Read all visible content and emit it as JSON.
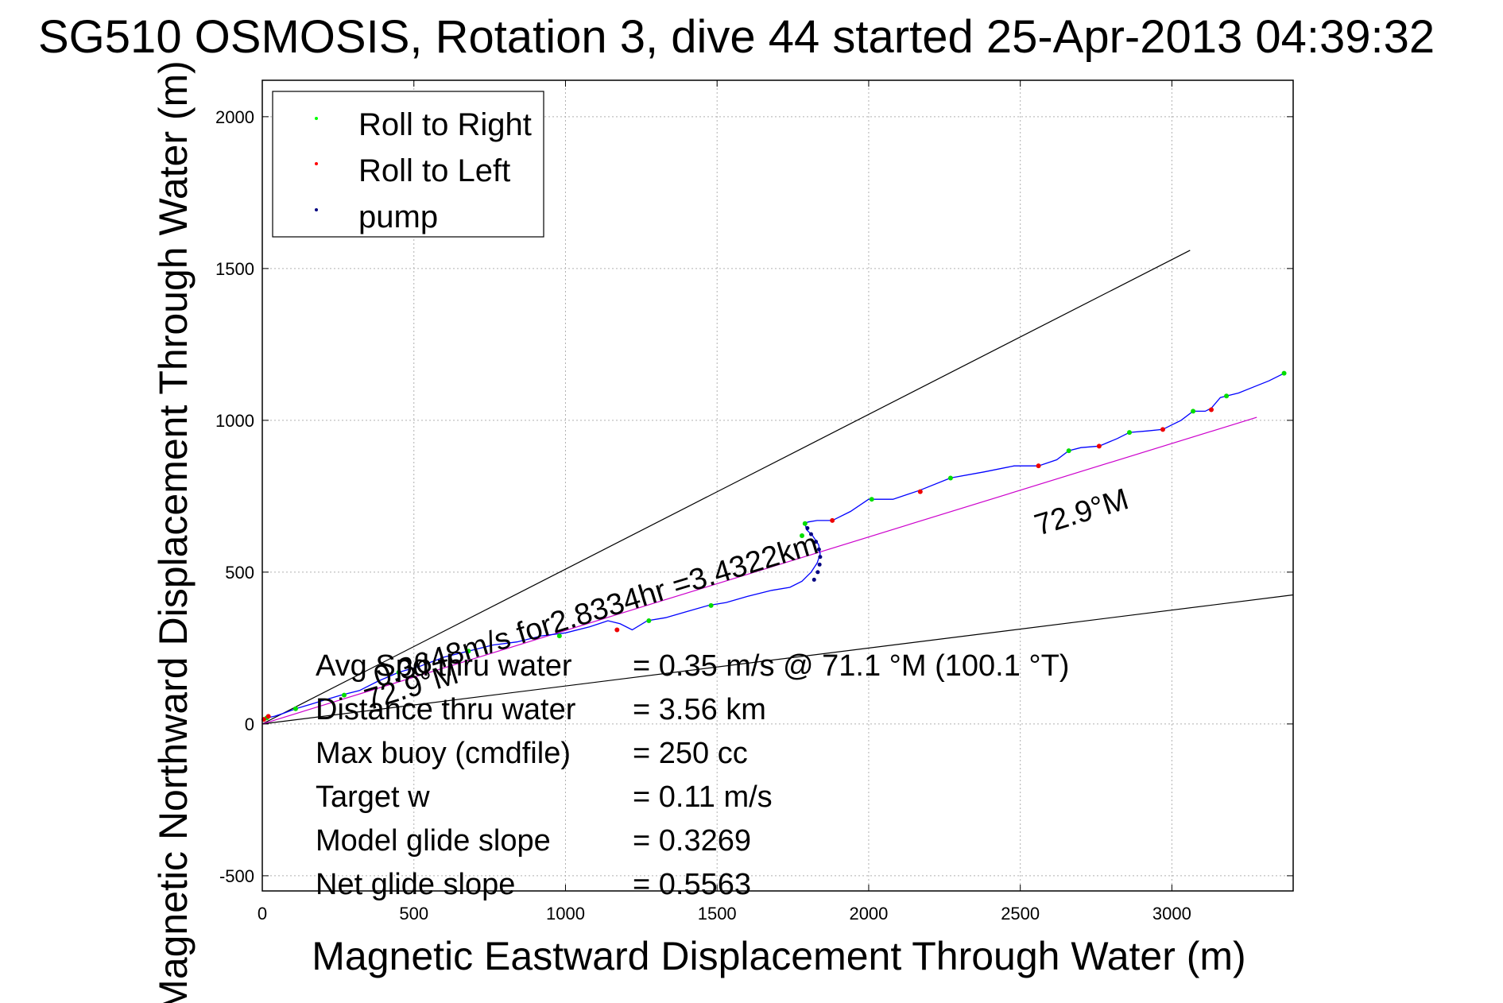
{
  "chart_data": {
    "type": "line",
    "title": "SG510 OSMOSIS, Rotation 3, dive 44 started 25-Apr-2013 04:39:32",
    "xlabel": "Magnetic Eastward Displacement Through Water (m)",
    "ylabel": "Magnetic Northward Displacement Through Water (m)",
    "xlim": [
      0,
      3400
    ],
    "ylim": [
      -550,
      2120
    ],
    "xticks": [
      0,
      500,
      1000,
      1500,
      2000,
      2500,
      3000
    ],
    "yticks": [
      -500,
      0,
      500,
      1000,
      1500,
      2000
    ],
    "grid": true,
    "legend_position": "top-left",
    "legend": [
      {
        "label": "Roll to Right",
        "color": "#00ff00"
      },
      {
        "label": "Roll to Left",
        "color": "#ff0000"
      },
      {
        "label": "pump",
        "color": "#000080"
      }
    ],
    "track": {
      "name": "",
      "color": "#0000ff",
      "x": [
        0,
        15,
        40,
        70,
        110,
        160,
        210,
        260,
        320,
        380,
        450,
        520,
        600,
        680,
        760,
        840,
        920,
        1000,
        1080,
        1140,
        1180,
        1220,
        1270,
        1330,
        1400,
        1470,
        1530,
        1600,
        1680,
        1740,
        1780,
        1810,
        1830,
        1840,
        1835,
        1815,
        1795,
        1790,
        1800,
        1830,
        1880,
        1940,
        2000,
        2080,
        2170,
        2270,
        2380,
        2480,
        2560,
        2620,
        2660,
        2700,
        2760,
        2820,
        2860,
        2920,
        2970,
        3000,
        3030,
        3070,
        3110,
        3130,
        3160,
        3180,
        3220,
        3270,
        3320,
        3370
      ],
      "y": [
        10,
        20,
        25,
        35,
        50,
        65,
        80,
        95,
        110,
        140,
        170,
        190,
        220,
        240,
        260,
        270,
        290,
        300,
        320,
        340,
        330,
        310,
        340,
        350,
        370,
        390,
        400,
        420,
        440,
        450,
        470,
        500,
        530,
        560,
        590,
        620,
        640,
        660,
        665,
        670,
        670,
        700,
        740,
        740,
        770,
        810,
        830,
        850,
        850,
        870,
        900,
        910,
        915,
        940,
        960,
        965,
        970,
        985,
        1000,
        1030,
        1030,
        1040,
        1075,
        1080,
        1090,
        1110,
        1130,
        1155
      ]
    },
    "markers": {
      "roll_right": {
        "x": [
          15,
          110,
          270,
          450,
          680,
          980,
          1275,
          1480,
          1780,
          1790,
          2010,
          2270,
          2660,
          2860,
          3070,
          3180,
          3370
        ],
        "y": [
          20,
          50,
          95,
          170,
          240,
          290,
          340,
          390,
          620,
          660,
          740,
          810,
          900,
          960,
          1030,
          1080,
          1155
        ]
      },
      "roll_left": {
        "x": [
          5,
          20,
          1170,
          1880,
          2170,
          2560,
          2760,
          2970,
          3130
        ],
        "y": [
          15,
          25,
          310,
          670,
          765,
          850,
          915,
          970,
          1035
        ]
      },
      "pump": {
        "x": [
          1820,
          1832,
          1838,
          1840,
          1836,
          1826,
          1810,
          1798
        ],
        "y": [
          475,
          500,
          525,
          550,
          575,
          600,
          625,
          645
        ]
      }
    },
    "reference_lines": [
      {
        "name": "",
        "color": "#000000",
        "x": [
          0,
          3060
        ],
        "y": [
          0,
          1560
        ]
      },
      {
        "name": "",
        "color": "#000000",
        "x": [
          0,
          3400
        ],
        "y": [
          0,
          425
        ]
      },
      {
        "name": "",
        "color": "#cc00cc",
        "x": [
          0,
          3280
        ],
        "y": [
          0,
          1010
        ]
      }
    ],
    "annotations": [
      {
        "text": "0.3648m/s for2.8334hr =3.4322km",
        "x": 380,
        "y": 120,
        "angle_deg": 17.0
      },
      {
        "text": "72.9°M",
        "x": 350,
        "y": 45,
        "angle_deg": 17.0
      },
      {
        "text": "72.9°M",
        "x": 2560,
        "y": 620,
        "angle_deg": 17.0
      }
    ],
    "stats": [
      {
        "label": "Avg Spd thru water",
        "value": "=  0.35 m/s @  71.1 °M (100.1 °T)"
      },
      {
        "label": "Distance thru water",
        "value": "=  3.56 km"
      },
      {
        "label": "Max buoy (cmdfile)",
        "value": "= 250 cc"
      },
      {
        "label": "Target w",
        "value": "= 0.11 m/s"
      },
      {
        "label": "Model glide slope",
        "value": "= 0.3269"
      },
      {
        "label": "Net glide slope",
        "value": "= 0.5563"
      }
    ]
  }
}
